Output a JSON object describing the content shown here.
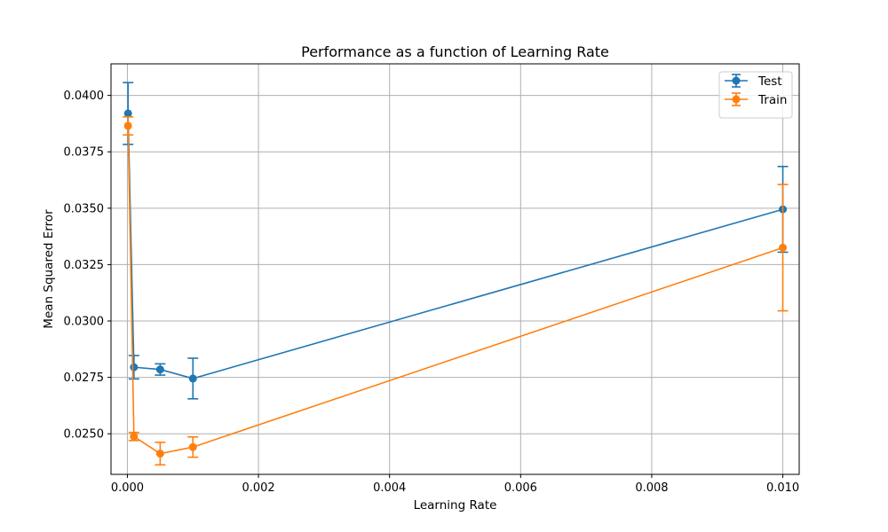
{
  "chart_data": {
    "type": "line",
    "title": "Performance as a function of Learning Rate",
    "xlabel": "Learning Rate",
    "ylabel": "Mean Squared Error",
    "xlim": [
      -0.00025,
      0.01025
    ],
    "ylim": [
      0.0232,
      0.0414
    ],
    "x_ticks": [
      0.0,
      0.002,
      0.004,
      0.006,
      0.008,
      0.01
    ],
    "x_tick_labels": [
      "0.000",
      "0.002",
      "0.004",
      "0.006",
      "0.008",
      "0.010"
    ],
    "y_ticks": [
      0.025,
      0.0275,
      0.03,
      0.0325,
      0.035,
      0.0375,
      0.04
    ],
    "y_tick_labels": [
      "0.0250",
      "0.0275",
      "0.0300",
      "0.0325",
      "0.0350",
      "0.0375",
      "0.0400"
    ],
    "grid": true,
    "legend_position": "top-right",
    "x": [
      1e-05,
      0.0001,
      0.0005,
      0.001,
      0.01
    ],
    "series": [
      {
        "name": "Test",
        "color": "#1f77b4",
        "values": [
          0.0392,
          0.02795,
          0.02785,
          0.02745,
          0.03495
        ],
        "errors": [
          0.00137,
          0.00052,
          0.00025,
          0.0009,
          0.0019
        ]
      },
      {
        "name": "Train",
        "color": "#ff7f0e",
        "values": [
          0.03865,
          0.02488,
          0.02412,
          0.02441,
          0.03325
        ],
        "errors": [
          0.0004,
          0.00018,
          0.0005,
          0.00045,
          0.0028
        ]
      }
    ]
  }
}
